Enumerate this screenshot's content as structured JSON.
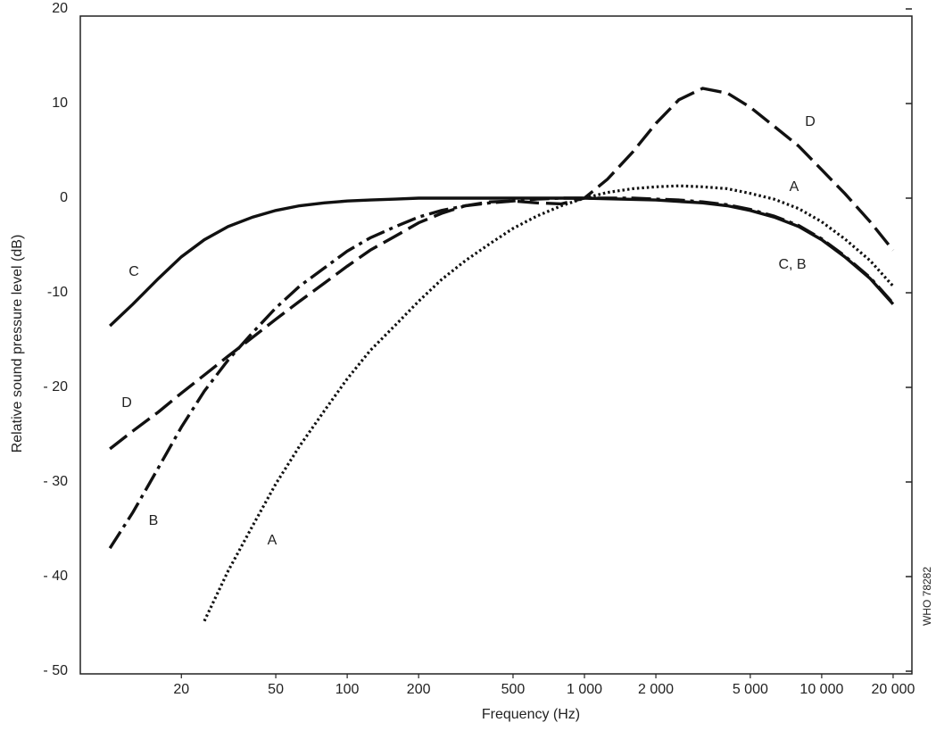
{
  "chart_data": {
    "type": "line",
    "x_label": "Frequency (Hz)",
    "y_label": "Relative sound pressure level (dB)",
    "side_note": "WHO 78282",
    "xscale": "log",
    "xlim": [
      7.5,
      24000
    ],
    "ylim": [
      -50,
      20
    ],
    "xticks": [
      20,
      50,
      100,
      200,
      500,
      {
        "value": 1000,
        "label": "1 000"
      },
      {
        "value": 2000,
        "label": "2 000"
      },
      {
        "value": 5000,
        "label": "5 000"
      },
      {
        "value": 10000,
        "label": "10 000"
      },
      {
        "value": 20000,
        "label": "20 000"
      }
    ],
    "yticks": [
      {
        "value": -50,
        "label": "- 50"
      },
      {
        "value": -40,
        "label": "- 40"
      },
      {
        "value": -30,
        "label": "- 30"
      },
      {
        "value": -20,
        "label": "- 20"
      },
      {
        "value": -10,
        "label": "-10"
      },
      0,
      10,
      20
    ],
    "grid": false,
    "series": [
      {
        "name": "A",
        "color": "#111111",
        "style": "dotted",
        "x": [
          25,
          31.5,
          40,
          50,
          63,
          80,
          100,
          125,
          160,
          200,
          250,
          315,
          400,
          500,
          630,
          800,
          1000,
          1250,
          1600,
          2000,
          2500,
          3150,
          4000,
          5000,
          6300,
          8000,
          10000,
          12500,
          16000,
          20000
        ],
        "y": [
          -44.7,
          -39.4,
          -34.6,
          -30.2,
          -26.2,
          -22.5,
          -19.1,
          -16.1,
          -13.4,
          -10.9,
          -8.6,
          -6.6,
          -4.8,
          -3.2,
          -1.9,
          -0.8,
          0,
          0.6,
          1.0,
          1.2,
          1.3,
          1.2,
          1.0,
          0.5,
          -0.1,
          -1.1,
          -2.5,
          -4.3,
          -6.6,
          -9.3
        ]
      },
      {
        "name": "B",
        "color": "#111111",
        "style": "dashdot",
        "x": [
          10,
          12.5,
          16,
          20,
          25,
          31.5,
          40,
          50,
          63,
          80,
          100,
          125,
          160,
          200,
          250,
          315,
          400,
          500,
          630,
          800,
          1000,
          1250,
          1600,
          2000,
          2500,
          3150,
          4000,
          5000,
          6300,
          8000,
          10000,
          12500,
          16000,
          20000
        ],
        "y": [
          -37.0,
          -33.2,
          -28.5,
          -24.2,
          -20.4,
          -17.1,
          -14.2,
          -11.6,
          -9.3,
          -7.4,
          -5.6,
          -4.2,
          -3.0,
          -2.0,
          -1.3,
          -0.8,
          -0.5,
          -0.3,
          -0.1,
          0,
          0,
          0,
          0,
          -0.1,
          -0.2,
          -0.4,
          -0.7,
          -1.2,
          -1.9,
          -2.9,
          -4.3,
          -6.1,
          -8.4,
          -11.1
        ]
      },
      {
        "name": "C",
        "color": "#111111",
        "style": "solid",
        "x": [
          10,
          12.5,
          16,
          20,
          25,
          31.5,
          40,
          50,
          63,
          80,
          100,
          125,
          160,
          200,
          500,
          1000,
          2000,
          3150,
          4000,
          5000,
          6300,
          8000,
          10000,
          12500,
          16000,
          20000
        ],
        "y": [
          -13.5,
          -11.2,
          -8.5,
          -6.2,
          -4.4,
          -3.0,
          -2.0,
          -1.3,
          -0.8,
          -0.5,
          -0.3,
          -0.2,
          -0.1,
          0,
          0,
          0,
          -0.2,
          -0.5,
          -0.8,
          -1.3,
          -2.0,
          -3.0,
          -4.4,
          -6.2,
          -8.5,
          -11.2
        ]
      },
      {
        "name": "D",
        "color": "#111111",
        "style": "dashed",
        "x": [
          10,
          12.5,
          16,
          20,
          25,
          31.5,
          40,
          50,
          63,
          80,
          100,
          125,
          160,
          200,
          250,
          315,
          400,
          500,
          630,
          800,
          1000,
          1250,
          1600,
          2000,
          2500,
          3150,
          4000,
          5000,
          6300,
          8000,
          10000,
          12500,
          16000,
          20000
        ],
        "y": [
          -26.5,
          -24.6,
          -22.6,
          -20.6,
          -18.7,
          -16.7,
          -14.7,
          -12.8,
          -10.9,
          -9.0,
          -7.2,
          -5.5,
          -4.0,
          -2.6,
          -1.6,
          -0.8,
          -0.4,
          -0.3,
          -0.5,
          -0.6,
          0,
          2.0,
          4.9,
          7.9,
          10.4,
          11.6,
          11.1,
          9.6,
          7.6,
          5.5,
          3.0,
          0.5,
          -2.5,
          -5.5
        ]
      }
    ],
    "annotations": [
      "A",
      "D",
      "C, B"
    ]
  }
}
